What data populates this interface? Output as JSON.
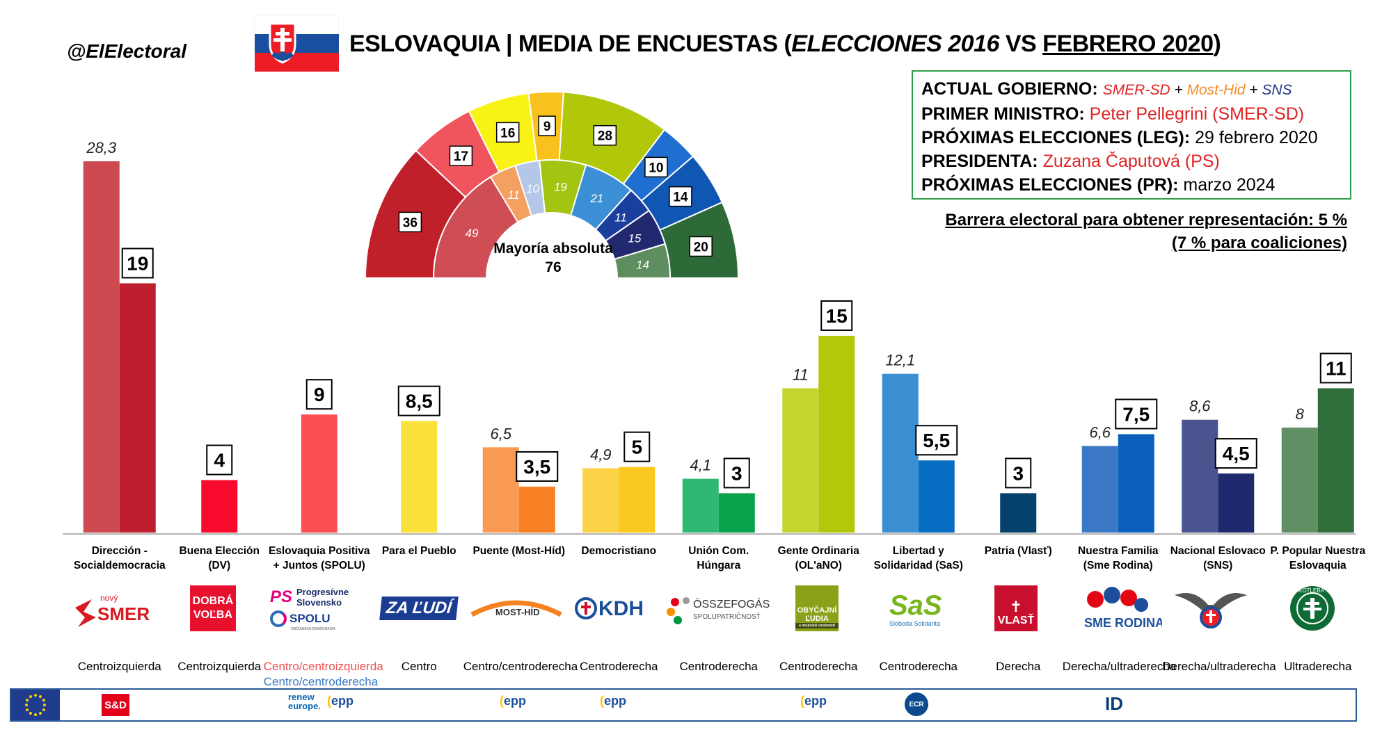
{
  "header": {
    "handle": "@ElElectoral",
    "title_main": "ESLOVAQUIA | MEDIA DE ENCUESTAS",
    "title_open": " (",
    "title_italic": "ELECCIONES 2016",
    "title_vs": " VS ",
    "title_underlined": "FEBRERO 2020",
    "title_close": ")"
  },
  "government": {
    "gov_key": "ACTUAL GOBIERNO: ",
    "gov_p1": "SMER-SD",
    "gov_plus1": " + ",
    "gov_p2": "Most-Hid",
    "gov_plus2": " + ",
    "gov_p3": "SNS",
    "pm_key": "PRIMER MINISTRO: ",
    "pm_val": "Peter Pellegrini (SMER-SD)",
    "next_leg_key": "PRÓXIMAS ELECCIONES (LEG): ",
    "next_leg_val": "29 febrero 2020",
    "pres_key": "PRESIDENTA: ",
    "pres_val": "Zuzana Čaputová (PS)",
    "next_pr_key": "PRÓXIMAS ELECCIONES (PR): ",
    "next_pr_val": "marzo 2024"
  },
  "barrier": {
    "line1": "Barrera electoral para obtener representación: 5 %",
    "line2": "(7 % para coaliciones)"
  },
  "hemicycle": {
    "majority_label": "Mayoría absoluta",
    "majority_value": "76",
    "outer": [
      {
        "seats": 36,
        "color": "#c0202a"
      },
      {
        "seats": 17,
        "color": "#f0545c"
      },
      {
        "seats": 16,
        "color": "#f8f215"
      },
      {
        "seats": 9,
        "color": "#f8c21e"
      },
      {
        "seats": 28,
        "color": "#b1c80a"
      },
      {
        "seats": 10,
        "color": "#1f6fd0"
      },
      {
        "seats": 14,
        "color": "#0f57b2"
      },
      {
        "seats": 20,
        "color": "#2e6a38"
      }
    ],
    "inner": [
      {
        "seats": 49,
        "color": "#cf4e55"
      },
      {
        "seats": 11,
        "color": "#f4a060"
      },
      {
        "seats": 10,
        "color": "#b4c7e7"
      },
      {
        "seats": 19,
        "color": "#a4c412"
      },
      {
        "seats": 21,
        "color": "#3b8fd4"
      },
      {
        "seats": 11,
        "color": "#1b3f9c"
      },
      {
        "seats": 15,
        "color": "#23296e"
      },
      {
        "seats": 14,
        "color": "#5e8e5f"
      }
    ]
  },
  "chart_data": {
    "type": "bar",
    "title": "ESLOVAQUIA | MEDIA DE ENCUESTAS (ELECCIONES 2016 VS FEBRERO 2020)",
    "ylim": [
      0,
      30
    ],
    "grid": false,
    "series": [
      {
        "name": "ELECCIONES 2016"
      },
      {
        "name": "FEBRERO 2020"
      }
    ],
    "parties": [
      {
        "category": "Dirección - Socialdemocracia",
        "ideology": "Centroizquierda",
        "v2016": 28.3,
        "l2016": "28,3",
        "v2020": 19,
        "l2020": "19",
        "c2016": "#cc4a50",
        "c2020": "#be1e2d"
      },
      {
        "category": "Buena Elección (DV)",
        "ideology": "Centroizquierda",
        "v2016": null,
        "l2016": "",
        "v2020": 4,
        "l2020": "4",
        "c2016": "",
        "c2020": "#f80a2e"
      },
      {
        "category": "Eslovaquia Positiva + Juntos (SPOLU)",
        "ideology": "Centro/centroizquierda",
        "ideology2": "Centro/centroderecha",
        "v2016": null,
        "l2016": "",
        "v2020": 9,
        "l2020": "9",
        "c2016": "",
        "c2020": "#fb4f55"
      },
      {
        "category": "Para el Pueblo",
        "ideology": "Centro",
        "v2016": null,
        "l2016": "",
        "v2020": 8.5,
        "l2020": "8,5",
        "c2016": "",
        "c2020": "#fae13c"
      },
      {
        "category": "Puente (Most-Híd)",
        "ideology": "Centro/centroderecha",
        "v2016": 6.5,
        "l2016": "6,5",
        "v2020": 3.5,
        "l2020": "3,5",
        "c2016": "#f89a52",
        "c2020": "#f87f22"
      },
      {
        "category": "Democristiano",
        "ideology": "Centroderecha",
        "v2016": 4.9,
        "l2016": "4,9",
        "v2020": 5,
        "l2020": "5",
        "c2016": "#fcd246",
        "c2020": "#fbc820"
      },
      {
        "category": "Unión Com. Húngara",
        "ideology": "Centroderecha",
        "v2016": 4.1,
        "l2016": "4,1",
        "v2020": 3,
        "l2020": "3",
        "c2016": "#2fb872",
        "c2020": "#0aa24c"
      },
      {
        "category": "Gente Ordinaria (OL'aNO)",
        "ideology": "Centroderecha",
        "v2016": 11,
        "l2016": "11",
        "v2020": 15,
        "l2020": "15",
        "c2016": "#c3d62f",
        "c2020": "#b3c80a"
      },
      {
        "category": "Libertad y Solidaridad (SaS)",
        "ideology": "Centroderecha",
        "v2016": 12.1,
        "l2016": "12,1",
        "v2020": 5.5,
        "l2020": "5,5",
        "c2016": "#3a8fd2",
        "c2020": "#066dc2"
      },
      {
        "category": "Patria (Vlasť)",
        "ideology": "Derecha",
        "v2016": null,
        "l2016": "",
        "v2020": 3,
        "l2020": "3",
        "c2016": "",
        "c2020": "#04416c"
      },
      {
        "category": "Nuestra Familia (Sme Rodina)",
        "ideology": "Derecha/ultraderecha",
        "v2016": 6.6,
        "l2016": "6,6",
        "v2020": 7.5,
        "l2020": "7,5",
        "c2016": "#3a77c4",
        "c2020": "#0b5fbd"
      },
      {
        "category": "Nacional Eslovaco (SNS)",
        "ideology": "Derecha/ultraderecha",
        "v2016": 8.6,
        "l2016": "8,6",
        "v2020": 4.5,
        "l2020": "4,5",
        "c2016": "#4a5590",
        "c2020": "#1f2a6e"
      },
      {
        "category": "P. Popular Nuestra Eslovaquia",
        "ideology": "Ultraderecha",
        "v2016": 8,
        "l2016": "8",
        "v2020": 11,
        "l2020": "11",
        "c2016": "#5f8f62",
        "c2020": "#2f6e3a"
      }
    ]
  },
  "logos": {
    "smer_small": "nový",
    "smer": "SMER",
    "dobra1": "DOBRÁ",
    "dobra2": "VOĽBA",
    "ps_mark": "PS",
    "ps1": "Progresívne",
    "ps2": "Slovensko",
    "spolu": "SPOLU",
    "spolu_sub": "OBČIANSKA DEMOKRACIA",
    "zaludi": "ZA ĽUDÍ",
    "most": "MOST-HÍD",
    "kdh": "KDH",
    "ossz1": "ÖSSZEFOGÁS",
    "ossz2": "SPOLUPATRIČNOSŤ",
    "olano1": "OBYČAJNÍ",
    "olano2": "ĽUDIA",
    "olano3": "a nezávislé osobnosti",
    "sas": "SaS",
    "sas_sub": "Sloboda Solidarita",
    "vlast": "VLASŤ",
    "smerod": "SME RODINA",
    "kotleba": "KOTLEBA"
  },
  "footer": {
    "sd": "S&D",
    "renew1": "renew",
    "renew2": "europe.",
    "epp": "epp",
    "ecr": "ECR",
    "id": "ID"
  }
}
